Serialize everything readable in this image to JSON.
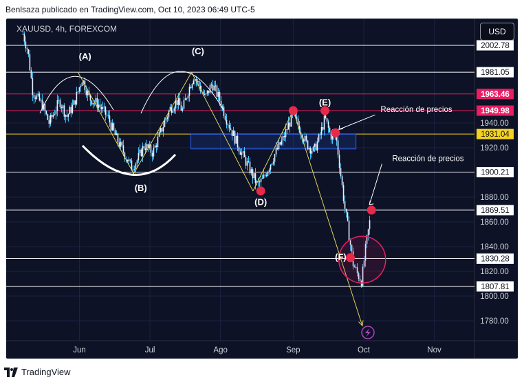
{
  "header": {
    "attribution": "Benlsaza publicado en TradingView.com, Oct 10, 2023 06:49 UTC-5"
  },
  "footer": {
    "brand": "TradingView"
  },
  "symbol_info": "XAUUSD, 4h, FOREXCOM",
  "currency_button": "USD",
  "colors": {
    "background": "#0d1226",
    "candle": "#e8f0ff",
    "wick": "#40c4ff",
    "wave_line": "#e3d35a",
    "marker": "#e8294a",
    "highlight_pink": "#e91e63",
    "highlight_yellow": "#f5d21f",
    "box_blue": "#2962ff"
  },
  "chart_data": {
    "type": "candlestick",
    "symbol": "XAUUSD",
    "timeframe": "4h",
    "ylim": [
      1763,
      2018
    ],
    "xaxis_ticks": [
      {
        "label": "Jun",
        "t": 0.18
      },
      {
        "label": "Jul",
        "t": 1.18
      },
      {
        "label": "Ago",
        "t": 2.18
      },
      {
        "label": "Sep",
        "t": 3.21
      },
      {
        "label": "Oct",
        "t": 4.21
      },
      {
        "label": "Nov",
        "t": 5.21
      }
    ],
    "yaxis_ticks": [
      1940.0,
      1920.0,
      1880.0,
      1860.0,
      1840.0,
      1820.0,
      1800.0,
      1780.0
    ],
    "levels": [
      {
        "price": 2002.78,
        "style": "white"
      },
      {
        "price": 1981.05,
        "style": "white"
      },
      {
        "price": 1963.46,
        "style": "pink"
      },
      {
        "price": 1949.98,
        "style": "pink"
      },
      {
        "price": 1931.04,
        "style": "yellow"
      },
      {
        "price": 1900.21,
        "style": "white"
      },
      {
        "price": 1869.51,
        "style": "white"
      },
      {
        "price": 1830.28,
        "style": "white"
      },
      {
        "price": 1807.81,
        "style": "white"
      }
    ],
    "wave_labels": [
      {
        "label": "(A)",
        "t": 0.26,
        "price": 1986
      },
      {
        "label": "(B)",
        "t": 1.05,
        "price": 1899
      },
      {
        "label": "(C)",
        "t": 1.86,
        "price": 1989
      },
      {
        "label": "(D)",
        "t": 2.75,
        "price": 1885
      },
      {
        "label": "(E)",
        "t": 3.66,
        "price": 1950
      },
      {
        "label": "(F)",
        "t": 4.02,
        "price": 1831
      }
    ],
    "markers": [
      {
        "t": 2.75,
        "price": 1885
      },
      {
        "t": 3.21,
        "price": 1950
      },
      {
        "t": 3.66,
        "price": 1950
      },
      {
        "t": 3.81,
        "price": 1932
      },
      {
        "t": 4.02,
        "price": 1831
      },
      {
        "t": 4.32,
        "price": 1869.5
      }
    ],
    "wave_path": [
      {
        "t": 0.16,
        "price": 1981
      },
      {
        "t": 0.95,
        "price": 1899
      },
      {
        "t": 1.77,
        "price": 1981
      },
      {
        "t": 2.64,
        "price": 1885
      },
      {
        "t": 3.21,
        "price": 1950
      },
      {
        "t": 4.19,
        "price": 1776
      }
    ],
    "annotations": [
      {
        "text": "Reacción de precios",
        "t": 4.05,
        "price": 1936
      },
      {
        "text": "Reacción de precios",
        "t": 4.4,
        "price": 1887
      }
    ],
    "zone_box": {
      "t0": 1.76,
      "t1": 4.1,
      "price_top": 1931,
      "price_bottom": 1919
    },
    "ohlc_path": [
      {
        "t": -0.62,
        "price": 2012
      },
      {
        "t": -0.55,
        "price": 1998
      },
      {
        "t": -0.48,
        "price": 1965
      },
      {
        "t": -0.35,
        "price": 1955
      },
      {
        "t": -0.25,
        "price": 1940
      },
      {
        "t": -0.1,
        "price": 1958
      },
      {
        "t": 0.0,
        "price": 1945
      },
      {
        "t": 0.1,
        "price": 1955
      },
      {
        "t": 0.22,
        "price": 1976
      },
      {
        "t": 0.32,
        "price": 1960
      },
      {
        "t": 0.45,
        "price": 1955
      },
      {
        "t": 0.58,
        "price": 1945
      },
      {
        "t": 0.7,
        "price": 1928
      },
      {
        "t": 0.82,
        "price": 1915
      },
      {
        "t": 0.92,
        "price": 1904
      },
      {
        "t": 1.0,
        "price": 1910
      },
      {
        "t": 1.1,
        "price": 1922
      },
      {
        "t": 1.22,
        "price": 1916
      },
      {
        "t": 1.34,
        "price": 1934
      },
      {
        "t": 1.46,
        "price": 1951
      },
      {
        "t": 1.56,
        "price": 1958
      },
      {
        "t": 1.64,
        "price": 1950
      },
      {
        "t": 1.72,
        "price": 1966
      },
      {
        "t": 1.8,
        "price": 1978
      },
      {
        "t": 1.88,
        "price": 1970
      },
      {
        "t": 1.96,
        "price": 1960
      },
      {
        "t": 2.06,
        "price": 1972
      },
      {
        "t": 2.16,
        "price": 1960
      },
      {
        "t": 2.26,
        "price": 1944
      },
      {
        "t": 2.38,
        "price": 1928
      },
      {
        "t": 2.5,
        "price": 1913
      },
      {
        "t": 2.6,
        "price": 1902
      },
      {
        "t": 2.7,
        "price": 1890
      },
      {
        "t": 2.78,
        "price": 1894
      },
      {
        "t": 2.86,
        "price": 1904
      },
      {
        "t": 2.96,
        "price": 1916
      },
      {
        "t": 3.06,
        "price": 1926
      },
      {
        "t": 3.14,
        "price": 1938
      },
      {
        "t": 3.21,
        "price": 1946
      },
      {
        "t": 3.3,
        "price": 1936
      },
      {
        "t": 3.4,
        "price": 1923
      },
      {
        "t": 3.5,
        "price": 1917
      },
      {
        "t": 3.58,
        "price": 1928
      },
      {
        "t": 3.66,
        "price": 1944
      },
      {
        "t": 3.74,
        "price": 1930
      },
      {
        "t": 3.82,
        "price": 1928
      },
      {
        "t": 3.88,
        "price": 1900
      },
      {
        "t": 3.94,
        "price": 1872
      },
      {
        "t": 4.0,
        "price": 1850
      },
      {
        "t": 4.06,
        "price": 1826
      },
      {
        "t": 4.12,
        "price": 1818
      },
      {
        "t": 4.18,
        "price": 1812
      },
      {
        "t": 4.24,
        "price": 1840
      },
      {
        "t": 4.3,
        "price": 1862
      }
    ],
    "magnifier_circle": {
      "t": 4.15,
      "price": 1825
    }
  }
}
